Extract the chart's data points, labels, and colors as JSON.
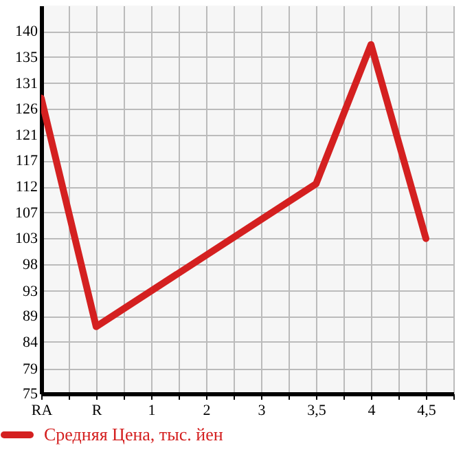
{
  "chart_data": {
    "type": "line",
    "categories": [
      "RA",
      null,
      "R",
      null,
      "1",
      null,
      "2",
      null,
      "3",
      null,
      "3,5",
      null,
      "4",
      null,
      "4,5",
      null
    ],
    "series": [
      {
        "name": "Средняя Цена, тыс. йен",
        "color": "#d42020",
        "values": [
          128,
          null,
          87,
          null,
          null,
          null,
          null,
          null,
          null,
          null,
          112.6,
          null,
          137.6,
          null,
          102.8,
          null
        ]
      }
    ],
    "ylim": [
      75,
      144.6
    ],
    "yticks": [
      {
        "value": 75,
        "label": "75"
      },
      {
        "value": 79.4,
        "label": "79"
      },
      {
        "value": 84.3,
        "label": "84"
      },
      {
        "value": 88.9,
        "label": "89"
      },
      {
        "value": 93.4,
        "label": "93"
      },
      {
        "value": 98.2,
        "label": "98"
      },
      {
        "value": 102.9,
        "label": "103"
      },
      {
        "value": 107.5,
        "label": "107"
      },
      {
        "value": 112.1,
        "label": "112"
      },
      {
        "value": 116.8,
        "label": "117"
      },
      {
        "value": 121.4,
        "label": "121"
      },
      {
        "value": 126.1,
        "label": "126"
      },
      {
        "value": 130.7,
        "label": "131"
      },
      {
        "value": 135.4,
        "label": "135"
      },
      {
        "value": 140,
        "label": "140"
      }
    ],
    "grid": true,
    "legend": "bottom left",
    "marker": "none",
    "line_style": "solid"
  }
}
